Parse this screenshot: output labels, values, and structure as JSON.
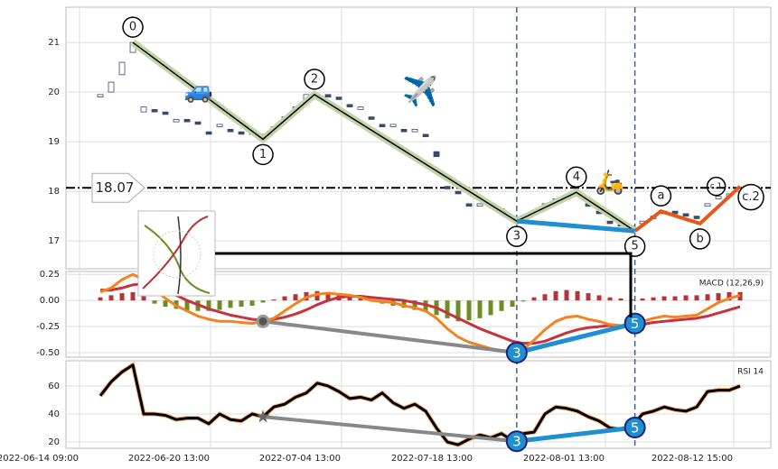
{
  "chart_data": {
    "type": "candlestick",
    "xlim": [
      -3.17,
      61.83
    ],
    "xticks": [
      {
        "value": -1.92,
        "label": "2022-06-14 09:00"
      },
      {
        "value": 10.16,
        "label": "2022-06-20 13:00"
      },
      {
        "value": 22.25,
        "label": "2022-07-04 13:00"
      },
      {
        "value": 34.41,
        "label": "2022-07-18 13:00"
      },
      {
        "value": 46.58,
        "label": "2022-08-01 13:00"
      },
      {
        "value": 58.41,
        "label": "2022-08-12 15:00"
      }
    ],
    "ylim": [
      16.44,
      21.71
    ],
    "yticks": [
      17,
      18,
      19,
      20,
      21
    ],
    "grid": true,
    "up_color": "#ffffff",
    "down_color": "#3b4a6b",
    "opens": [
      19.9,
      20.0,
      20.35,
      20.8,
      19.6,
      19.65,
      19.6,
      19.4,
      19.45,
      19.4,
      19.2,
      19.3,
      19.25,
      19.2,
      19.15,
      19.15,
      19.25,
      19.45,
      19.65,
      19.85,
      19.9,
      19.95,
      19.9,
      19.75,
      19.65,
      19.5,
      19.35,
      19.3,
      19.25,
      19.2,
      19.15,
      18.8,
      18.1,
      18.0,
      17.75,
      17.7,
      17.75,
      17.6,
      17.5,
      17.45,
      17.55,
      17.7,
      17.8,
      17.85,
      17.9,
      17.75,
      17.6,
      17.4,
      17.35,
      17.3,
      17.35,
      17.45,
      17.55,
      17.6,
      17.55,
      17.5,
      17.7,
      17.85,
      17.9,
      18.0
    ],
    "closes": [
      19.95,
      20.2,
      20.6,
      21.0,
      19.7,
      19.6,
      19.55,
      19.45,
      19.4,
      19.35,
      19.15,
      19.35,
      19.2,
      19.15,
      19.2,
      19.1,
      19.3,
      19.5,
      19.7,
      19.95,
      19.95,
      19.9,
      19.85,
      19.7,
      19.7,
      19.45,
      19.3,
      19.35,
      19.2,
      19.25,
      19.1,
      18.7,
      18.05,
      17.95,
      17.7,
      17.75,
      17.7,
      17.65,
      17.45,
      17.5,
      17.6,
      17.75,
      17.85,
      17.9,
      17.95,
      17.7,
      17.55,
      17.35,
      17.3,
      17.25,
      17.4,
      17.5,
      17.6,
      17.55,
      17.5,
      17.45,
      17.75,
      17.9,
      17.95,
      18.05
    ],
    "hline": 18.07,
    "waves": [
      {
        "label": "0",
        "x": 3.0,
        "y": 21.0
      },
      {
        "label": "1",
        "x": 15.0,
        "y": 19.05
      },
      {
        "label": "2",
        "x": 19.75,
        "y": 19.95
      },
      {
        "label": "3",
        "x": 38.4,
        "y": 17.4
      },
      {
        "label": "4",
        "x": 43.9,
        "y": 17.98
      },
      {
        "label": "5",
        "x": 49.3,
        "y": 17.2
      },
      {
        "label": "a",
        "x": 51.7,
        "y": 17.6
      },
      {
        "label": "b",
        "x": 55.3,
        "y": 17.35
      },
      {
        "label": "c.2",
        "x": 59.0,
        "y": 18.1
      }
    ],
    "sub_wave": {
      "label": "c.1",
      "x": 56.8,
      "y": 18.1
    },
    "icons": [
      "🚙",
      "✈️",
      "🛵"
    ],
    "vlines": [
      38.4,
      49.3
    ],
    "macd": {
      "title": "MACD (12,26,9)",
      "ylim": [
        -0.543,
        0.278
      ],
      "yticks": [
        {
          "value": -0.5,
          "label": "-0.50"
        },
        -0.25,
        {
          "value": 0,
          "label": "0.00"
        },
        0.25
      ],
      "macd": {
        "color": "#f5821f",
        "values": [
          0.08,
          0.12,
          0.2,
          0.25,
          0.2,
          0.1,
          0.02,
          -0.05,
          -0.1,
          -0.15,
          -0.18,
          -0.2,
          -0.2,
          -0.21,
          -0.22,
          -0.2,
          -0.17,
          -0.1,
          -0.03,
          0.03,
          0.06,
          0.07,
          0.06,
          0.05,
          0.03,
          0.0,
          -0.01,
          -0.02,
          -0.05,
          -0.07,
          -0.1,
          -0.17,
          -0.27,
          -0.35,
          -0.4,
          -0.43,
          -0.46,
          -0.48,
          -0.5,
          -0.47,
          -0.38,
          -0.28,
          -0.2,
          -0.16,
          -0.15,
          -0.18,
          -0.2,
          -0.23,
          -0.24,
          -0.23,
          -0.2,
          -0.17,
          -0.15,
          -0.16,
          -0.15,
          -0.14,
          -0.08,
          -0.02,
          0.02,
          0.05
        ]
      },
      "signal": {
        "color": "#c8323c",
        "values": [
          0.1,
          0.1,
          0.12,
          0.15,
          0.16,
          0.14,
          0.1,
          0.05,
          0.0,
          -0.04,
          -0.08,
          -0.11,
          -0.14,
          -0.16,
          -0.18,
          -0.19,
          -0.18,
          -0.16,
          -0.13,
          -0.09,
          -0.04,
          0.0,
          0.03,
          0.04,
          0.04,
          0.03,
          0.02,
          0.01,
          0.0,
          -0.02,
          -0.04,
          -0.07,
          -0.12,
          -0.17,
          -0.22,
          -0.27,
          -0.31,
          -0.35,
          -0.39,
          -0.41,
          -0.41,
          -0.39,
          -0.35,
          -0.31,
          -0.28,
          -0.26,
          -0.25,
          -0.24,
          -0.24,
          -0.24,
          -0.23,
          -0.21,
          -0.2,
          -0.19,
          -0.18,
          -0.17,
          -0.15,
          -0.12,
          -0.09,
          -0.06
        ]
      },
      "histogram": {
        "pos_color": "#b5343a",
        "neg_color": "#6b8e23",
        "values": [
          0.03,
          0.05,
          0.07,
          0.08,
          0.04,
          -0.03,
          -0.06,
          -0.08,
          -0.1,
          -0.1,
          -0.1,
          -0.09,
          -0.07,
          -0.06,
          -0.05,
          -0.02,
          0.01,
          0.04,
          0.06,
          0.08,
          0.09,
          0.08,
          0.06,
          0.04,
          0.02,
          -0.01,
          -0.03,
          -0.05,
          -0.07,
          -0.09,
          -0.11,
          -0.14,
          -0.17,
          -0.2,
          -0.19,
          -0.17,
          -0.14,
          -0.1,
          -0.06,
          -0.01,
          0.03,
          0.06,
          0.09,
          0.1,
          0.09,
          0.07,
          0.05,
          0.03,
          0.02,
          0.01,
          0.02,
          0.03,
          0.04,
          0.04,
          0.05,
          0.05,
          0.06,
          0.07,
          0.08,
          0.08
        ]
      }
    },
    "rsi": {
      "title": "RSI 14",
      "ylim": [
        15.5,
        78
      ],
      "yticks": [
        20,
        40,
        60
      ],
      "color": "#000000",
      "values": [
        53,
        63,
        70,
        75,
        40,
        40,
        39,
        36,
        37,
        37,
        33,
        40,
        36,
        35,
        40,
        38,
        45,
        47,
        52,
        55,
        62,
        60,
        56,
        51,
        52,
        50,
        55,
        48,
        44,
        47,
        42,
        30,
        20,
        18,
        22,
        25,
        23,
        26,
        21,
        26,
        27,
        40,
        45,
        44,
        42,
        38,
        35,
        30,
        29,
        31,
        40,
        42,
        45,
        43,
        42,
        45,
        56,
        57,
        57,
        60
      ]
    },
    "divergence": {
      "price": [
        [
          38.4,
          17.4
        ],
        [
          49.3,
          17.2
        ]
      ],
      "macd": [
        [
          15.0,
          -0.2
        ],
        [
          38.4,
          -0.5
        ],
        [
          49.3,
          -0.22
        ]
      ],
      "rsi": [
        [
          15.0,
          38
        ],
        [
          38.4,
          20.5
        ],
        [
          49.3,
          30.3
        ]
      ]
    }
  }
}
